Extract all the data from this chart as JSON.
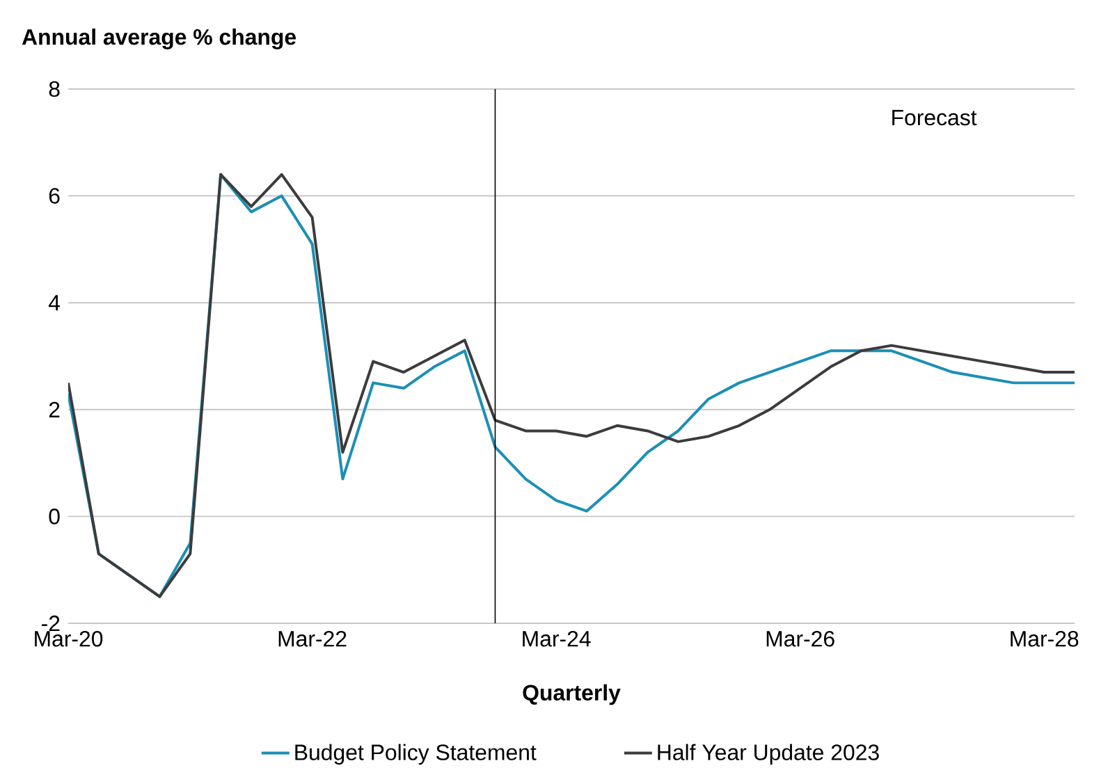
{
  "chart_data": {
    "type": "line",
    "ylabel": "Annual average % change",
    "xlabel": "Quarterly",
    "x": [
      "2020-03",
      "2020-06",
      "2020-09",
      "2020-12",
      "2021-03",
      "2021-06",
      "2021-09",
      "2021-12",
      "2022-03",
      "2022-06",
      "2022-09",
      "2022-12",
      "2023-03",
      "2023-06",
      "2023-09",
      "2023-12",
      "2024-03",
      "2024-06",
      "2024-09",
      "2024-12",
      "2025-03",
      "2025-06",
      "2025-09",
      "2025-12",
      "2026-03",
      "2026-06",
      "2026-09",
      "2026-12",
      "2027-03",
      "2027-06",
      "2027-09",
      "2027-12",
      "2028-03",
      "2028-06"
    ],
    "series": [
      {
        "name": "Budget Policy Statement",
        "color": "#1b8fb6",
        "values": [
          2.3,
          -0.7,
          -1.1,
          -1.5,
          -0.5,
          6.4,
          5.7,
          6.0,
          5.1,
          0.7,
          2.5,
          2.4,
          2.8,
          3.1,
          1.3,
          0.7,
          0.3,
          0.1,
          0.6,
          1.2,
          1.6,
          2.2,
          2.5,
          2.7,
          2.9,
          3.1,
          3.1,
          3.1,
          2.9,
          2.7,
          2.6,
          2.5,
          2.5,
          2.5
        ]
      },
      {
        "name": "Half Year Update 2023",
        "color": "#3c3c3c",
        "values": [
          2.5,
          -0.7,
          -1.1,
          -1.5,
          -0.7,
          6.4,
          5.8,
          6.4,
          5.6,
          1.2,
          2.9,
          2.7,
          3.0,
          3.3,
          1.8,
          1.6,
          1.6,
          1.5,
          1.7,
          1.6,
          1.4,
          1.5,
          1.7,
          2.0,
          2.4,
          2.8,
          3.1,
          3.2,
          3.1,
          3.0,
          2.9,
          2.8,
          2.7,
          2.7
        ]
      }
    ],
    "xlim": [
      "2020-03",
      "2028-06"
    ],
    "xticks": [
      {
        "value": "2020-03",
        "label": "Mar-20"
      },
      {
        "value": "2022-03",
        "label": "Mar-22"
      },
      {
        "value": "2024-03",
        "label": "Mar-24"
      },
      {
        "value": "2026-03",
        "label": "Mar-26"
      },
      {
        "value": "2028-03",
        "label": "Mar-28"
      }
    ],
    "ylim": [
      -2,
      8
    ],
    "yticks": [
      -2,
      0,
      2,
      4,
      6,
      8
    ],
    "ref_lines": [
      {
        "axis": "x",
        "value": "2023-09",
        "color": "#000000"
      }
    ],
    "annotations": [
      "Forecast"
    ],
    "grid": "y",
    "legend": "bottom",
    "marker": "none",
    "line_style": "solid"
  }
}
